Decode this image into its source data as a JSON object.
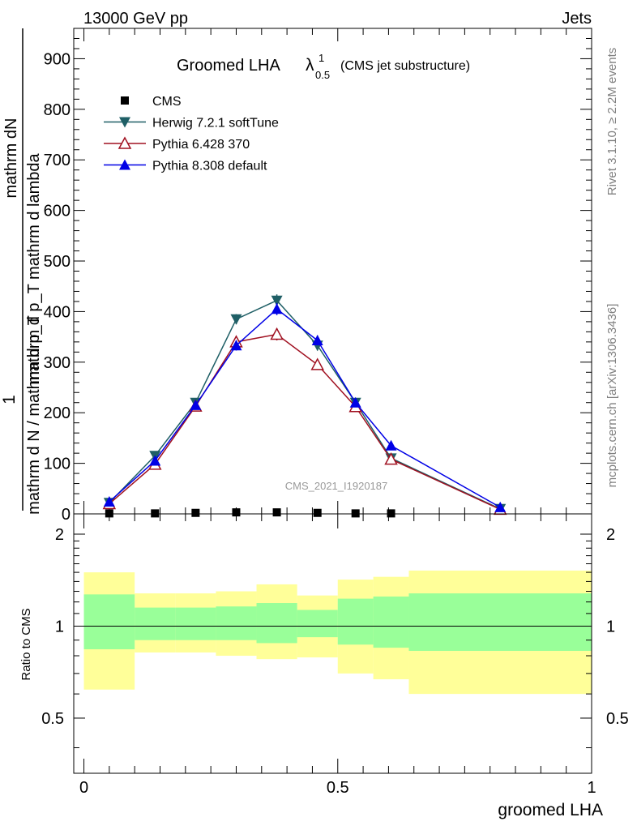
{
  "header": {
    "left": "13000 GeV pp",
    "right": "Jets"
  },
  "side_labels": {
    "rivet": "Rivet 3.1.10, ≥ 2.2M events",
    "mcplots": "mcplots.cern.ch [arXiv:1306.3436]"
  },
  "watermark": "CMS_2021_I1920187",
  "colors": {
    "cms": "#000000",
    "herwig": "#1f5f66",
    "pythia6": "#a01020",
    "pythia8": "#0000e6",
    "band_inner": "#99ff99",
    "band_outer": "#ffff99"
  },
  "chart_data": [
    {
      "type": "line",
      "title": "Groomed LHA",
      "title_symbol": "λ",
      "title_superscript": "1",
      "title_subscript": "0.5",
      "subtitle": "(CMS jet substructure)",
      "xlabel": "groomed LHA",
      "ylabel_top": "1",
      "ylabel_top_alt": "mathrm dN",
      "ylabel_right": "mathrm d p_T mathrm d lambda",
      "ylabel_bottom": "mathrm d N / mathrm d p_T",
      "xlim": [
        -0.02,
        1.0
      ],
      "ylim": [
        0,
        960
      ],
      "x_ticks": [
        0,
        0.5,
        1
      ],
      "x_tick_labels": [
        "0",
        "0.5",
        "1"
      ],
      "y_ticks": [
        0,
        100,
        200,
        300,
        400,
        500,
        600,
        700,
        800,
        900
      ],
      "y_tick_labels": [
        "0",
        "100",
        "200",
        "300",
        "400",
        "500",
        "600",
        "700",
        "800",
        "900"
      ],
      "series": [
        {
          "name": "CMS",
          "marker": "square",
          "x": [
            0.05,
            0.14,
            0.22,
            0.3,
            0.38,
            0.46,
            0.535,
            0.605
          ],
          "values": [
            1,
            1,
            2,
            3,
            3,
            2,
            1,
            1
          ]
        },
        {
          "name": "Herwig 7.2.1 softTune",
          "marker": "triangle-down",
          "x": [
            0.05,
            0.14,
            0.22,
            0.3,
            0.38,
            0.46,
            0.535,
            0.605,
            0.82
          ],
          "values": [
            22,
            115,
            220,
            385,
            422,
            333,
            220,
            110,
            10
          ],
          "errors": [
            3,
            5,
            7,
            10,
            12,
            10,
            7,
            5,
            2
          ]
        },
        {
          "name": "Pythia 6.428 370",
          "marker": "triangle-up-open",
          "x": [
            0.05,
            0.14,
            0.22,
            0.3,
            0.38,
            0.46,
            0.535,
            0.605,
            0.82
          ],
          "values": [
            20,
            98,
            213,
            340,
            355,
            295,
            212,
            108,
            9
          ],
          "errors": [
            3,
            5,
            7,
            10,
            12,
            10,
            7,
            5,
            2
          ]
        },
        {
          "name": "Pythia 8.308 default",
          "marker": "triangle-up",
          "x": [
            0.05,
            0.14,
            0.22,
            0.3,
            0.38,
            0.46,
            0.535,
            0.605,
            0.82
          ],
          "values": [
            24,
            105,
            215,
            333,
            405,
            343,
            220,
            135,
            13
          ],
          "errors": [
            3,
            5,
            7,
            10,
            12,
            10,
            7,
            5,
            2
          ]
        }
      ]
    },
    {
      "type": "area",
      "ylabel": "Ratio to CMS",
      "xlabel": "groomed LHA",
      "xlim": [
        -0.02,
        1.0
      ],
      "ylim": [
        0.33,
        2.33
      ],
      "y_ticks": [
        0.5,
        1,
        2
      ],
      "y_tick_labels": [
        "0.5",
        "1",
        "2"
      ],
      "bin_edges": [
        0.0,
        0.1,
        0.18,
        0.26,
        0.34,
        0.42,
        0.5,
        0.57,
        0.64,
        1.0
      ],
      "inner_band": {
        "upper": [
          1.27,
          1.15,
          1.15,
          1.16,
          1.19,
          1.13,
          1.23,
          1.25,
          1.28
        ],
        "lower": [
          0.84,
          0.9,
          0.9,
          0.9,
          0.88,
          0.92,
          0.87,
          0.85,
          0.83
        ]
      },
      "outer_band": {
        "upper": [
          1.5,
          1.28,
          1.28,
          1.3,
          1.37,
          1.26,
          1.42,
          1.45,
          1.52
        ],
        "lower": [
          0.62,
          0.82,
          0.82,
          0.8,
          0.78,
          0.79,
          0.7,
          0.67,
          0.6
        ]
      },
      "reference_line": 1
    }
  ]
}
